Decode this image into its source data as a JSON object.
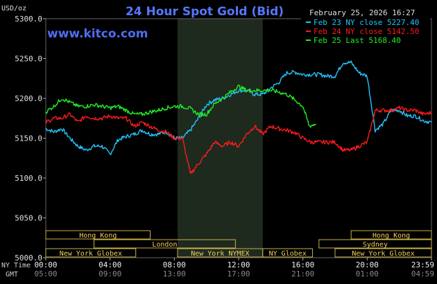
{
  "header": {
    "title": "24 Hour Spot Gold (Bid)",
    "timestamp": "February 25, 2026 16:27",
    "unit": "USD/oz",
    "watermark": "www.kitco.com"
  },
  "legend": [
    {
      "label": "Feb 23 NY close 5227.40",
      "color": "#22c4ff"
    },
    {
      "label": "Feb 24 NY close 5142.50",
      "color": "#ff1a1a"
    },
    {
      "label": "Feb 25 Last 5168.40",
      "color": "#22ee22"
    }
  ],
  "sessions": {
    "markets": [
      {
        "label": "Hong Kong",
        "row": 0,
        "start": 0,
        "end": 6.5
      },
      {
        "label": "Hong Kong",
        "row": 0,
        "start": 19.0,
        "end": 24
      },
      {
        "label": "London",
        "row": 1,
        "start": 3.0,
        "end": 11.8
      },
      {
        "label": "Sydney",
        "row": 1,
        "start": 17.0,
        "end": 24
      },
      {
        "label": "New York Globex",
        "row": 2,
        "start": 0,
        "end": 5.6
      },
      {
        "label": "New York NYMEX",
        "row": 2,
        "start": 8.2,
        "end": 13.5
      },
      {
        "label": "NY Globex",
        "row": 2,
        "start": 13.5,
        "end": 16.6
      },
      {
        "label": "New York Globex",
        "row": 2,
        "start": 18.0,
        "end": 24
      }
    ],
    "nymex_shade": {
      "start": 8.2,
      "end": 13.5
    }
  },
  "xaxis": {
    "ny_label": "NY Time",
    "gmt_label": "GMT",
    "ny_ticks": [
      "00:00",
      "04:00",
      "08:00",
      "12:00",
      "16:00",
      "20:00",
      "23:59"
    ],
    "gmt_ticks": [
      "05:00",
      "09:00",
      "13:00",
      "17:00",
      "21:00",
      "01:00",
      "04:59"
    ]
  },
  "chart_data": {
    "type": "line",
    "title": "24 Hour Spot Gold (Bid)",
    "ylabel": "USD/oz",
    "xlabel": "NY Time",
    "ylim": [
      5000,
      5300
    ],
    "xlim": [
      0,
      24
    ],
    "yticks": [
      "5300.0",
      "5250.0",
      "5200.0",
      "5150.0",
      "5100.0",
      "5050.0",
      "5000.0"
    ],
    "grid": false,
    "legend_position": "top-right",
    "series": [
      {
        "name": "Feb 23 NY close 5227.40",
        "color": "#22c4ff",
        "x": [
          0,
          0.5,
          1,
          1.5,
          2,
          2.5,
          3,
          3.5,
          4,
          4.5,
          5,
          5.5,
          6,
          6.5,
          7,
          7.5,
          8,
          8.5,
          9,
          9.5,
          10,
          10.5,
          11,
          11.5,
          12,
          12.5,
          13,
          13.5,
          14,
          14.5,
          15,
          15.5,
          16,
          16.5,
          17,
          17.5,
          18,
          18.5,
          19,
          19.5,
          20,
          20.5,
          21,
          21.5,
          22,
          22.5,
          23,
          23.5,
          24
        ],
        "y": [
          5162,
          5158,
          5162,
          5150,
          5140,
          5135,
          5140,
          5140,
          5130,
          5148,
          5152,
          5155,
          5160,
          5155,
          5155,
          5158,
          5150,
          5150,
          5160,
          5175,
          5192,
          5198,
          5200,
          5205,
          5210,
          5210,
          5205,
          5205,
          5213,
          5220,
          5232,
          5233,
          5230,
          5230,
          5230,
          5228,
          5228,
          5245,
          5245,
          5232,
          5228,
          5160,
          5168,
          5185,
          5185,
          5178,
          5178,
          5172,
          5170
        ]
      },
      {
        "name": "Feb 24 NY close 5142.50",
        "color": "#ff1a1a",
        "x": [
          0,
          0.5,
          1,
          1.5,
          2,
          2.5,
          3,
          3.5,
          4,
          4.5,
          5,
          5.5,
          6,
          6.5,
          7,
          7.5,
          8,
          8.5,
          9,
          9.5,
          10,
          10.5,
          11,
          11.5,
          12,
          12.5,
          13,
          13.5,
          14,
          14.5,
          15,
          15.5,
          16,
          16.5,
          17,
          17.5,
          18,
          18.5,
          19,
          19.5,
          20,
          20.5,
          21,
          21.5,
          22,
          22.5,
          23,
          23.5,
          24
        ],
        "y": [
          5170,
          5175,
          5175,
          5180,
          5170,
          5178,
          5175,
          5175,
          5178,
          5175,
          5175,
          5165,
          5170,
          5165,
          5160,
          5158,
          5150,
          5150,
          5105,
          5118,
          5130,
          5145,
          5140,
          5145,
          5140,
          5155,
          5165,
          5155,
          5165,
          5162,
          5160,
          5157,
          5150,
          5145,
          5145,
          5145,
          5145,
          5135,
          5135,
          5140,
          5145,
          5185,
          5185,
          5185,
          5188,
          5185,
          5185,
          5180,
          5182
        ]
      },
      {
        "name": "Feb 25 Last 5168.40",
        "color": "#22ee22",
        "x": [
          0,
          0.5,
          1,
          1.5,
          2,
          2.5,
          3,
          3.5,
          4,
          4.5,
          5,
          5.5,
          6,
          6.5,
          7,
          7.5,
          8,
          8.5,
          9,
          9.5,
          10,
          10.5,
          11,
          11.5,
          12,
          12.5,
          13,
          13.5,
          14,
          14.5,
          15,
          15.5,
          16,
          16.4,
          16.8
        ],
        "y": [
          5183,
          5190,
          5200,
          5195,
          5190,
          5190,
          5192,
          5190,
          5188,
          5190,
          5185,
          5180,
          5180,
          5183,
          5185,
          5188,
          5190,
          5190,
          5187,
          5180,
          5180,
          5193,
          5200,
          5208,
          5215,
          5210,
          5210,
          5210,
          5210,
          5208,
          5205,
          5198,
          5190,
          5165,
          5168
        ]
      }
    ]
  }
}
